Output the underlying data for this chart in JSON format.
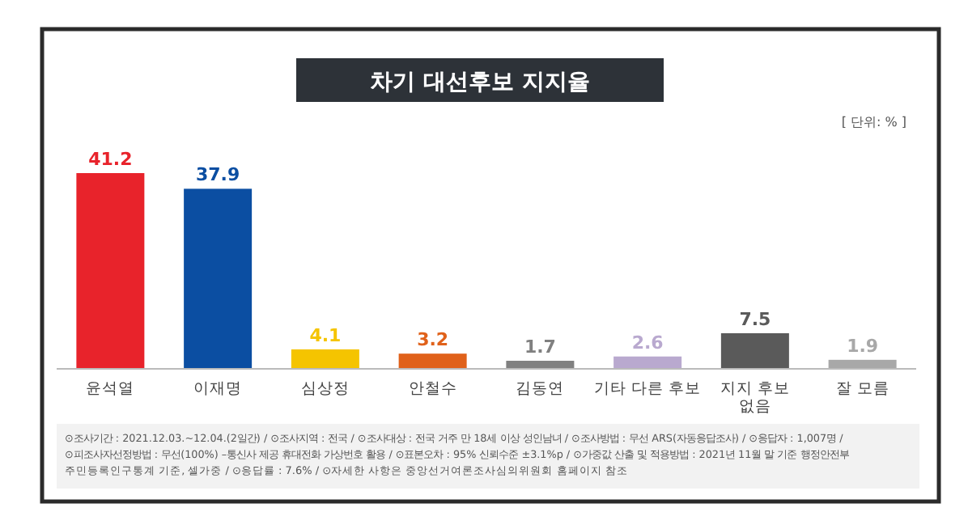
{
  "chart_data": {
    "type": "bar",
    "title": "차기 대선후보 지지율",
    "categories": [
      "윤석열",
      "이재명",
      "심상정",
      "안철수",
      "김동연",
      "기타 다른 후보",
      "지지 후보\n없음",
      "잘 모름"
    ],
    "values": [
      41.2,
      37.9,
      4.1,
      3.2,
      1.7,
      2.6,
      7.5,
      1.9
    ],
    "colors": [
      "#e8232b",
      "#0b4ea2",
      "#f5c400",
      "#e0611a",
      "#808080",
      "#b9a9cf",
      "#5a5a5a",
      "#a8a8a8"
    ],
    "data_labels": true,
    "annotations": [
      "[ 단위: % ]",
      "⊙조사기간 : 2021.12.03.~12.04.(2일간) / ⊙조사지역 : 전국 / ⊙조사대상 : 전국 거주 만 18세 이상 성인남녀 / ⊙조사방법 : 무선 ARS(자동응답조사) / ⊙응답자 : 1,007명 /",
      "⊙피조사자선정방법 : 무선(100%) –통신사 제공 휴대전화 가상번호 활용 / ⊙표본오차 : 95% 신뢰수준 ±3.1%p / ⊙가중값 산출 및 적용방법 : 2021년 11월 말 기준 행정안전부",
      "주민등록인구통계 기준, 셀가중 / ⊙응답률 : 7.6% / ⊙자세한 사항은 중앙선거여론조사심의위원회 홈페이지 참조"
    ]
  }
}
